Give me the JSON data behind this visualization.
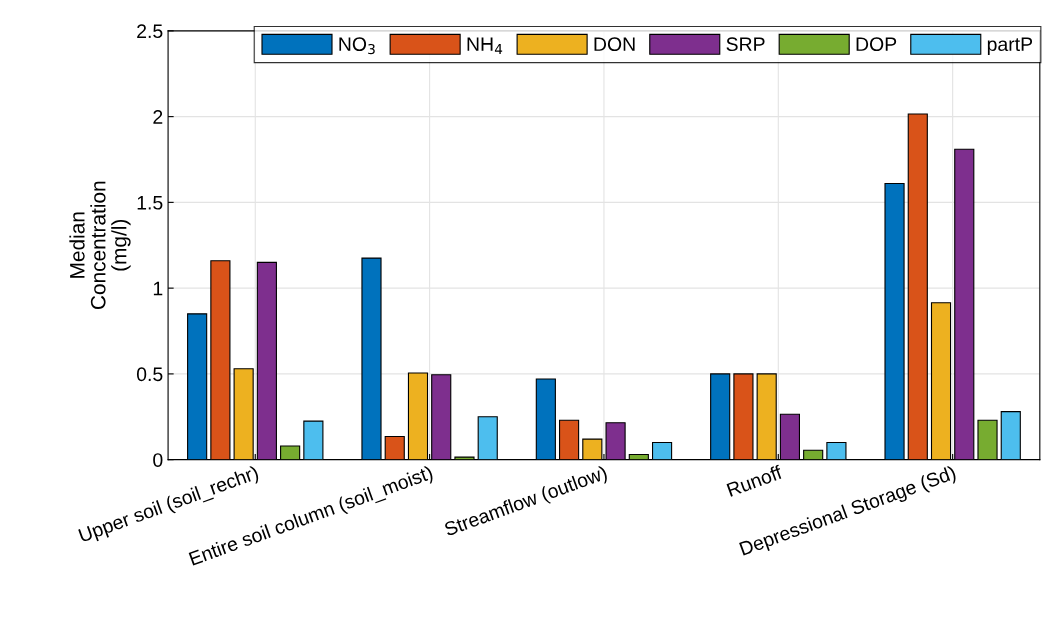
{
  "chart_data": {
    "type": "bar",
    "ylabel": "Median\nConcentration\n(mg/l)",
    "categories": [
      "Upper soil (soil_rechr)",
      "Entire soil column (soil_moist)",
      "Streamflow (outlow)",
      "Runoff",
      "Depressional Storage (Sd)"
    ],
    "series": [
      {
        "name": "NO$_{3}$",
        "color": "#0072bd",
        "values": [
          0.85,
          1.175,
          0.47,
          0.5,
          1.61
        ]
      },
      {
        "name": "NH$_{4}$",
        "color": "#d95319",
        "values": [
          1.16,
          0.135,
          0.23,
          0.5,
          2.015
        ]
      },
      {
        "name": "DON",
        "color": "#edb120",
        "values": [
          0.53,
          0.505,
          0.12,
          0.5,
          0.915
        ]
      },
      {
        "name": "SRP",
        "color": "#7e2f8e",
        "values": [
          1.15,
          0.495,
          0.215,
          0.265,
          1.81
        ]
      },
      {
        "name": "DOP",
        "color": "#77ac30",
        "values": [
          0.08,
          0.015,
          0.03,
          0.055,
          0.23
        ]
      },
      {
        "name": "partP",
        "color": "#4dbeee",
        "values": [
          0.225,
          0.25,
          0.1,
          0.1,
          0.28
        ]
      }
    ],
    "ylim": [
      0,
      2.5
    ],
    "yticks": [
      0,
      0.5,
      1,
      1.5,
      2,
      2.5
    ],
    "grid": true,
    "legend": "top"
  }
}
